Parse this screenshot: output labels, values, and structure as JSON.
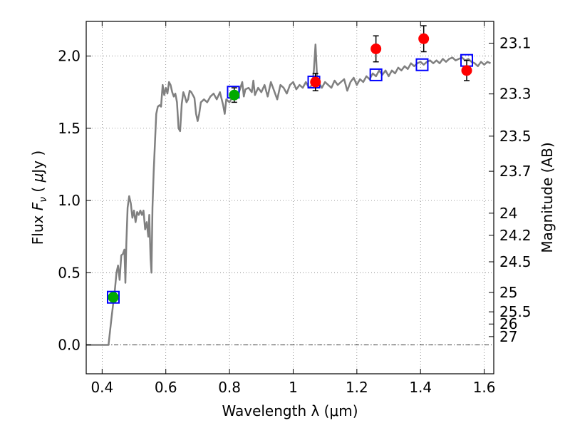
{
  "chart_data": {
    "type": "scatter",
    "title": "",
    "xlabel": "Wavelength  λ (μm)",
    "ylabel_parts": [
      "Flux  ",
      "F",
      "ν",
      "  ( ",
      "μ",
      "Jy )"
    ],
    "ylabel_right": "Magnitude (AB)",
    "xlim": [
      0.35,
      1.63
    ],
    "ylim": [
      -0.2,
      2.24
    ],
    "grid": true,
    "xticks": [
      {
        "value": 0.4,
        "label": "0.4"
      },
      {
        "value": 0.6,
        "label": "0.6"
      },
      {
        "value": 0.8,
        "label": "0.8"
      },
      {
        "value": 1.0,
        "label": "1"
      },
      {
        "value": 1.2,
        "label": "1.2"
      },
      {
        "value": 1.4,
        "label": "1.4"
      },
      {
        "value": 1.6,
        "label": "1.6"
      }
    ],
    "yticks": [
      {
        "value": 0.0,
        "label": "0.0"
      },
      {
        "value": 0.5,
        "label": "0.5"
      },
      {
        "value": 1.0,
        "label": "1.0"
      },
      {
        "value": 1.5,
        "label": "1.5"
      },
      {
        "value": 2.0,
        "label": "2.0"
      }
    ],
    "mag_ticks": [
      {
        "mag": 23.1,
        "label": "23.1"
      },
      {
        "mag": 23.3,
        "label": "23.3"
      },
      {
        "mag": 23.5,
        "label": "23.5"
      },
      {
        "mag": 23.7,
        "label": "23.7"
      },
      {
        "mag": 24,
        "label": "24"
      },
      {
        "mag": 24.2,
        "label": "24.2"
      },
      {
        "mag": 24.5,
        "label": "24.5"
      },
      {
        "mag": 25,
        "label": "25"
      },
      {
        "mag": 25.5,
        "label": "25.5"
      },
      {
        "mag": 26,
        "label": "26"
      },
      {
        "mag": 27,
        "label": "27"
      }
    ],
    "model_spectrum": {
      "color": "#808080",
      "points": [
        [
          0.35,
          0.0
        ],
        [
          0.37,
          0.0
        ],
        [
          0.39,
          0.0
        ],
        [
          0.41,
          0.0
        ],
        [
          0.42,
          0.0
        ],
        [
          0.43,
          0.2
        ],
        [
          0.44,
          0.38
        ],
        [
          0.445,
          0.5
        ],
        [
          0.45,
          0.55
        ],
        [
          0.455,
          0.45
        ],
        [
          0.46,
          0.62
        ],
        [
          0.465,
          0.63
        ],
        [
          0.47,
          0.66
        ],
        [
          0.473,
          0.43
        ],
        [
          0.476,
          0.7
        ],
        [
          0.48,
          0.95
        ],
        [
          0.485,
          1.03
        ],
        [
          0.49,
          0.98
        ],
        [
          0.495,
          0.88
        ],
        [
          0.5,
          0.93
        ],
        [
          0.505,
          0.85
        ],
        [
          0.51,
          0.92
        ],
        [
          0.515,
          0.9
        ],
        [
          0.52,
          0.93
        ],
        [
          0.525,
          0.9
        ],
        [
          0.53,
          0.93
        ],
        [
          0.535,
          0.8
        ],
        [
          0.54,
          0.85
        ],
        [
          0.545,
          0.75
        ],
        [
          0.548,
          0.9
        ],
        [
          0.552,
          0.6
        ],
        [
          0.555,
          0.5
        ],
        [
          0.558,
          0.95
        ],
        [
          0.562,
          1.2
        ],
        [
          0.566,
          1.4
        ],
        [
          0.57,
          1.6
        ],
        [
          0.575,
          1.65
        ],
        [
          0.58,
          1.66
        ],
        [
          0.585,
          1.65
        ],
        [
          0.59,
          1.8
        ],
        [
          0.595,
          1.73
        ],
        [
          0.6,
          1.78
        ],
        [
          0.605,
          1.74
        ],
        [
          0.61,
          1.82
        ],
        [
          0.615,
          1.8
        ],
        [
          0.62,
          1.75
        ],
        [
          0.625,
          1.72
        ],
        [
          0.63,
          1.74
        ],
        [
          0.635,
          1.68
        ],
        [
          0.64,
          1.5
        ],
        [
          0.645,
          1.48
        ],
        [
          0.65,
          1.67
        ],
        [
          0.655,
          1.75
        ],
        [
          0.66,
          1.72
        ],
        [
          0.665,
          1.68
        ],
        [
          0.67,
          1.7
        ],
        [
          0.675,
          1.76
        ],
        [
          0.68,
          1.75
        ],
        [
          0.685,
          1.73
        ],
        [
          0.69,
          1.71
        ],
        [
          0.695,
          1.6
        ],
        [
          0.7,
          1.55
        ],
        [
          0.705,
          1.6
        ],
        [
          0.71,
          1.68
        ],
        [
          0.72,
          1.7
        ],
        [
          0.73,
          1.68
        ],
        [
          0.74,
          1.72
        ],
        [
          0.75,
          1.74
        ],
        [
          0.76,
          1.7
        ],
        [
          0.77,
          1.75
        ],
        [
          0.78,
          1.66
        ],
        [
          0.785,
          1.6
        ],
        [
          0.79,
          1.7
        ],
        [
          0.8,
          1.68
        ],
        [
          0.81,
          1.72
        ],
        [
          0.82,
          1.7
        ],
        [
          0.83,
          1.75
        ],
        [
          0.84,
          1.82
        ],
        [
          0.845,
          1.72
        ],
        [
          0.85,
          1.77
        ],
        [
          0.86,
          1.78
        ],
        [
          0.87,
          1.75
        ],
        [
          0.875,
          1.83
        ],
        [
          0.88,
          1.73
        ],
        [
          0.89,
          1.78
        ],
        [
          0.9,
          1.75
        ],
        [
          0.91,
          1.8
        ],
        [
          0.92,
          1.72
        ],
        [
          0.93,
          1.82
        ],
        [
          0.94,
          1.76
        ],
        [
          0.95,
          1.7
        ],
        [
          0.96,
          1.8
        ],
        [
          0.97,
          1.78
        ],
        [
          0.98,
          1.74
        ],
        [
          0.99,
          1.8
        ],
        [
          1.0,
          1.82
        ],
        [
          1.01,
          1.77
        ],
        [
          1.02,
          1.8
        ],
        [
          1.03,
          1.78
        ],
        [
          1.04,
          1.82
        ],
        [
          1.05,
          1.78
        ],
        [
          1.06,
          1.8
        ],
        [
          1.065,
          1.9
        ],
        [
          1.07,
          2.08
        ],
        [
          1.072,
          2.0
        ],
        [
          1.075,
          1.85
        ],
        [
          1.08,
          1.82
        ],
        [
          1.09,
          1.78
        ],
        [
          1.1,
          1.82
        ],
        [
          1.11,
          1.8
        ],
        [
          1.12,
          1.78
        ],
        [
          1.13,
          1.83
        ],
        [
          1.14,
          1.8
        ],
        [
          1.15,
          1.82
        ],
        [
          1.16,
          1.84
        ],
        [
          1.17,
          1.76
        ],
        [
          1.18,
          1.82
        ],
        [
          1.19,
          1.85
        ],
        [
          1.2,
          1.8
        ],
        [
          1.21,
          1.84
        ],
        [
          1.22,
          1.82
        ],
        [
          1.23,
          1.86
        ],
        [
          1.24,
          1.84
        ],
        [
          1.25,
          1.88
        ],
        [
          1.26,
          1.86
        ],
        [
          1.27,
          1.9
        ],
        [
          1.28,
          1.87
        ],
        [
          1.29,
          1.9
        ],
        [
          1.3,
          1.86
        ],
        [
          1.31,
          1.9
        ],
        [
          1.32,
          1.88
        ],
        [
          1.33,
          1.92
        ],
        [
          1.34,
          1.9
        ],
        [
          1.35,
          1.93
        ],
        [
          1.36,
          1.91
        ],
        [
          1.37,
          1.95
        ],
        [
          1.38,
          1.93
        ],
        [
          1.39,
          1.95
        ],
        [
          1.4,
          1.96
        ],
        [
          1.41,
          1.94
        ],
        [
          1.42,
          1.96
        ],
        [
          1.43,
          1.97
        ],
        [
          1.44,
          1.95
        ],
        [
          1.45,
          1.97
        ],
        [
          1.46,
          1.95
        ],
        [
          1.47,
          1.98
        ],
        [
          1.48,
          1.96
        ],
        [
          1.49,
          1.98
        ],
        [
          1.5,
          1.99
        ],
        [
          1.51,
          1.97
        ],
        [
          1.52,
          1.98
        ],
        [
          1.53,
          1.99
        ],
        [
          1.54,
          1.97
        ],
        [
          1.55,
          1.98
        ],
        [
          1.56,
          1.96
        ],
        [
          1.57,
          1.95
        ],
        [
          1.58,
          1.93
        ],
        [
          1.59,
          1.96
        ],
        [
          1.6,
          1.94
        ],
        [
          1.61,
          1.96
        ],
        [
          1.62,
          1.95
        ]
      ]
    },
    "model_photometry": {
      "color": "#0000ff",
      "points": [
        {
          "x": 0.435,
          "y": 0.33
        },
        {
          "x": 0.812,
          "y": 1.75
        },
        {
          "x": 1.065,
          "y": 1.82
        },
        {
          "x": 1.26,
          "y": 1.87
        },
        {
          "x": 1.405,
          "y": 1.94
        },
        {
          "x": 1.545,
          "y": 1.97
        }
      ]
    },
    "observed_green": {
      "color": "#00aa00",
      "points": [
        {
          "x": 0.435,
          "y": 0.33,
          "err": 0.03
        },
        {
          "x": 0.815,
          "y": 1.73,
          "err": 0.05
        }
      ]
    },
    "observed_red": {
      "color": "#ff0000",
      "points": [
        {
          "x": 1.07,
          "y": 1.82,
          "err": 0.06
        },
        {
          "x": 1.26,
          "y": 2.05,
          "err": 0.09
        },
        {
          "x": 1.41,
          "y": 2.12,
          "err": 0.09
        },
        {
          "x": 1.545,
          "y": 1.9,
          "err": 0.07
        }
      ]
    }
  }
}
